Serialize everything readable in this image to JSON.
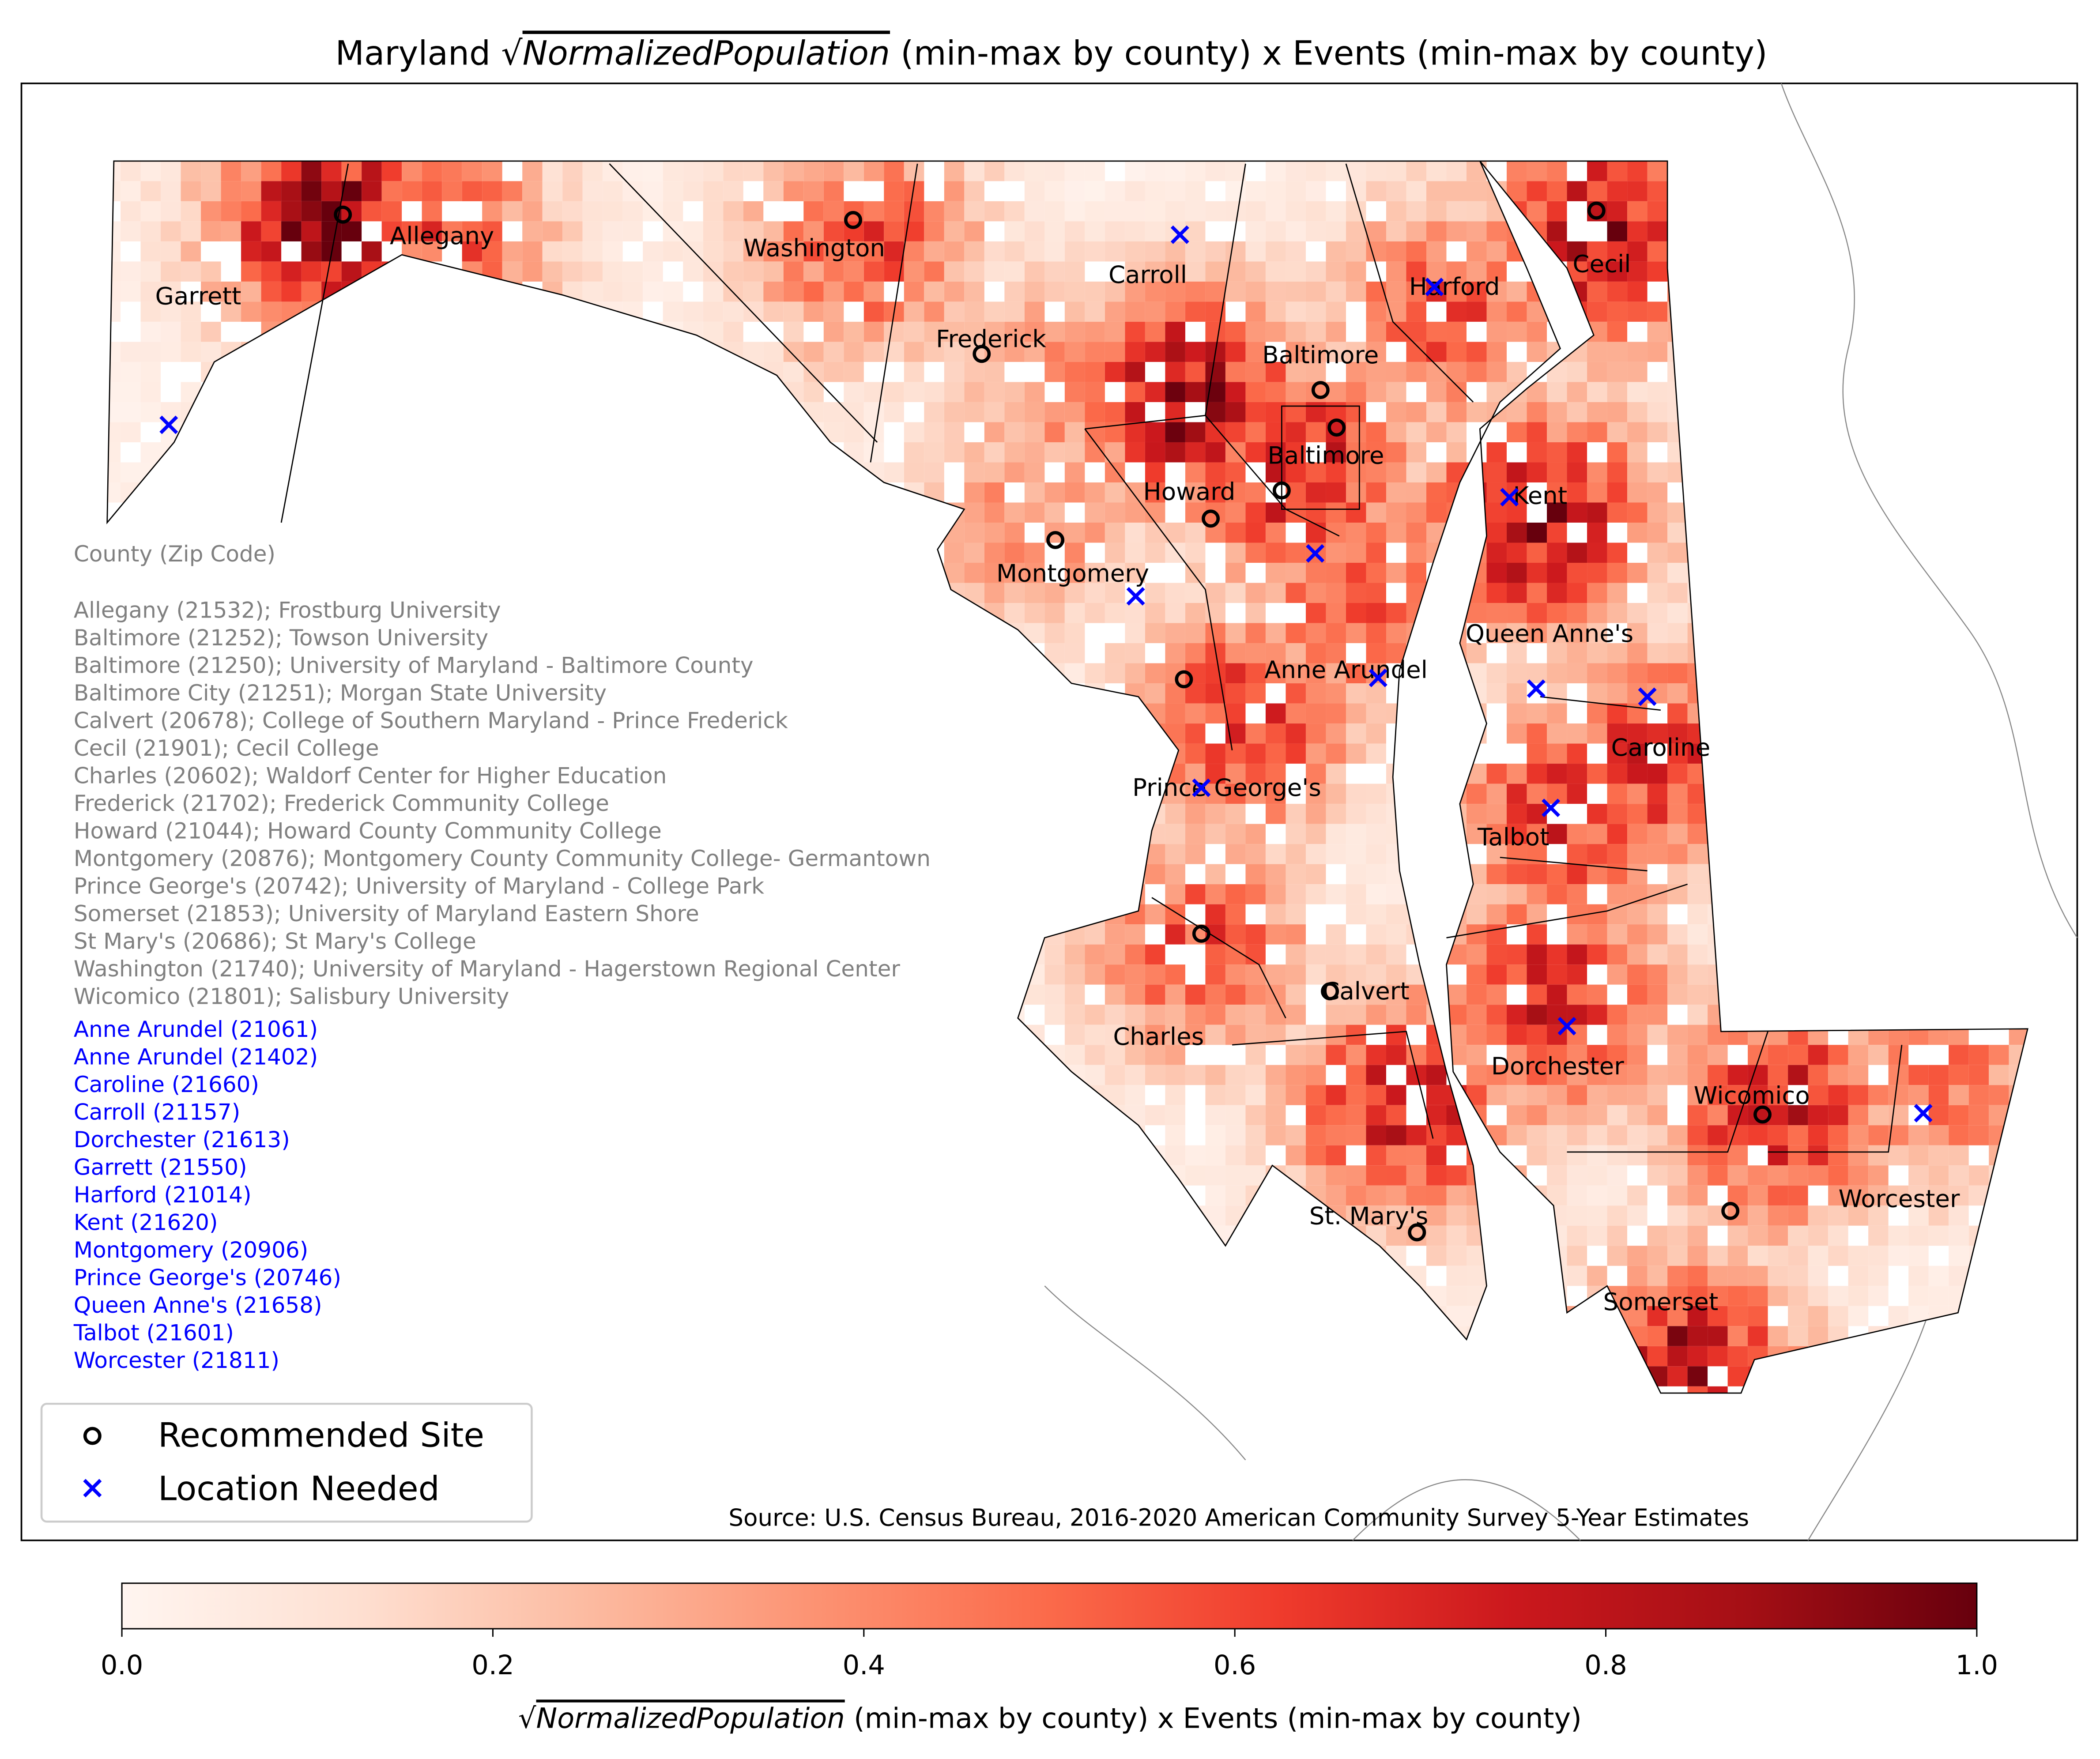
{
  "title": {
    "prefix": "Maryland ",
    "sqrt": "√",
    "math": "NormalizedPopulation",
    "suffix": " (min-max by county) x Events (min-max by county)"
  },
  "colormap": {
    "name": "Reds",
    "stops": [
      "#fff5f0",
      "#fee0d2",
      "#fcbba1",
      "#fc9272",
      "#fb6a4a",
      "#ef3b2c",
      "#cb181d",
      "#a50f15",
      "#67000d"
    ]
  },
  "colorbar": {
    "ticks": [
      "0.0",
      "0.2",
      "0.4",
      "0.6",
      "0.8",
      "1.0"
    ],
    "range": [
      0,
      1
    ],
    "label": {
      "sqrt": "√",
      "math": "NormalizedPopulation",
      "suffix": " (min-max by county) x Events (min-max by county)"
    }
  },
  "source": "Source: U.S. Census Bureau, 2016-2020 American Community Survey 5-Year Estimates",
  "county_labels": [
    "Garrett",
    "Allegany",
    "Washington",
    "Carroll",
    "Frederick",
    "Baltimore",
    "Baltimore",
    "Harford",
    "Cecil",
    "Howard",
    "Kent",
    "Montgomery",
    "Queen Anne's",
    "Anne Arundel",
    "Caroline",
    "Prince George's",
    "Talbot",
    "Calvert",
    "Charles",
    "Dorchester",
    "Wicomico",
    "Worcester",
    "St. Mary's",
    "Somerset"
  ],
  "annotation": {
    "header": "County (Zip Code)",
    "recommended": [
      "Allegany (21532); Frostburg University",
      "Baltimore (21252); Towson University",
      "Baltimore (21250); University of Maryland - Baltimore County",
      "Baltimore City (21251); Morgan State University",
      "Calvert (20678); College of Southern Maryland - Prince Frederick",
      "Cecil (21901); Cecil College",
      "Charles (20602); Waldorf Center for Higher Education",
      "Frederick (21702); Frederick Community College",
      "Howard (21044); Howard County Community College",
      "Montgomery (20876); Montgomery County Community College- Germantown",
      "Prince George's (20742); University of Maryland - College Park",
      "Somerset (21853); University of Maryland Eastern Shore",
      "St Mary's (20686); St Mary's College",
      "Washington (21740); University of Maryland - Hagerstown Regional Center",
      "Wicomico (21801); Salisbury University"
    ],
    "needed": [
      "Anne Arundel (21061)",
      "Anne Arundel (21402)",
      "Caroline (21660)",
      "Carroll (21157)",
      "Dorchester (21613)",
      "Garrett (21550)",
      "Harford (21014)",
      "Kent (21620)",
      "Montgomery (20906)",
      "Prince George's (20746)",
      "Queen Anne's  (21658)",
      "Talbot (21601)",
      "Worcester (21811)"
    ],
    "recommended_color": "#808080",
    "needed_color": "#0000ff"
  },
  "legend": {
    "items": [
      {
        "label": "Recommended Site",
        "marker": "circle-open",
        "color": "#000000"
      },
      {
        "label": "Location Needed",
        "marker": "x",
        "color": "#0000ff"
      }
    ]
  }
}
